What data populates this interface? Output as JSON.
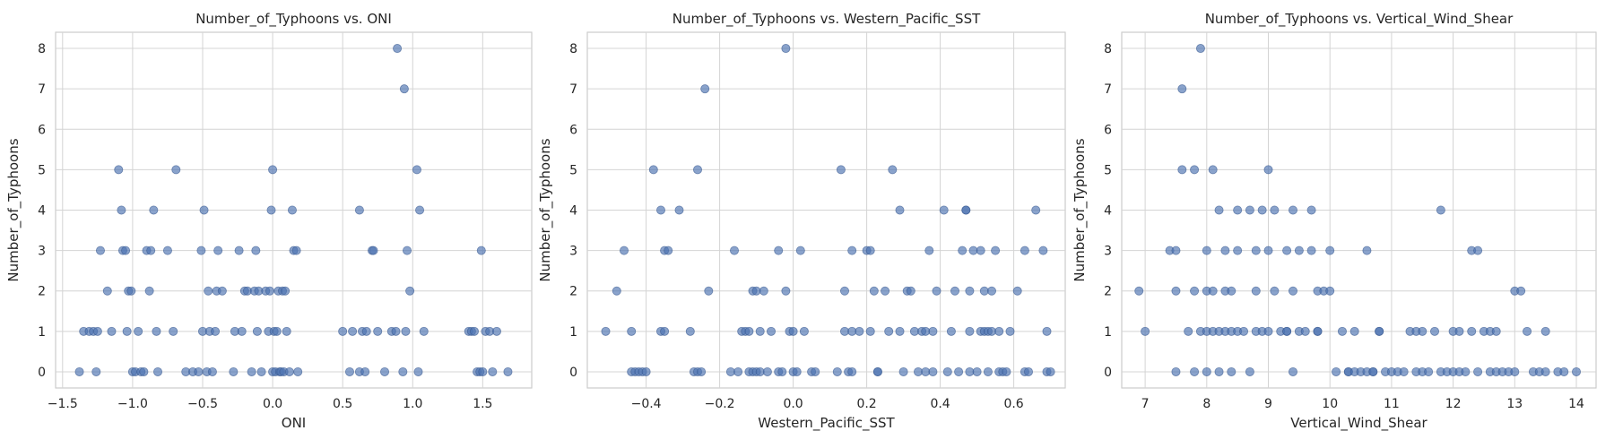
{
  "chart_data": [
    {
      "type": "scatter",
      "title": "Number_of_Typhoons vs. ONI",
      "xlabel": "ONI",
      "ylabel": "Number_of_Typhoons",
      "xlim": [
        -1.55,
        1.85
      ],
      "ylim": [
        -0.4,
        8.4
      ],
      "xticks": [
        -1.5,
        -1.0,
        -0.5,
        0.0,
        0.5,
        1.0,
        1.5
      ],
      "xtick_labels": [
        "−1.5",
        "−1.0",
        "−0.5",
        "0.0",
        "0.5",
        "1.0",
        "1.5"
      ],
      "yticks": [
        0,
        1,
        2,
        3,
        4,
        5,
        6,
        7,
        8
      ],
      "ytick_labels": [
        "0",
        "1",
        "2",
        "3",
        "4",
        "5",
        "6",
        "7",
        "8"
      ],
      "grid": true,
      "color": "#4c72b0",
      "points": [
        [
          -1.38,
          0
        ],
        [
          -1.35,
          1
        ],
        [
          -1.31,
          1
        ],
        [
          -1.28,
          1
        ],
        [
          -1.25,
          1
        ],
        [
          -1.26,
          0
        ],
        [
          -1.23,
          3
        ],
        [
          -1.18,
          2
        ],
        [
          -1.15,
          1
        ],
        [
          -1.1,
          5
        ],
        [
          -1.08,
          4
        ],
        [
          -1.07,
          3
        ],
        [
          -1.05,
          3
        ],
        [
          -1.04,
          1
        ],
        [
          -1.03,
          2
        ],
        [
          -1.01,
          2
        ],
        [
          -1.0,
          0
        ],
        [
          -0.98,
          0
        ],
        [
          -0.96,
          1
        ],
        [
          -0.94,
          0
        ],
        [
          -0.92,
          0
        ],
        [
          -0.9,
          3
        ],
        [
          -0.88,
          2
        ],
        [
          -0.87,
          3
        ],
        [
          -0.85,
          4
        ],
        [
          -0.83,
          1
        ],
        [
          -0.82,
          0
        ],
        [
          -0.75,
          3
        ],
        [
          -0.71,
          1
        ],
        [
          -0.69,
          5
        ],
        [
          -0.62,
          0
        ],
        [
          -0.57,
          0
        ],
        [
          -0.53,
          0
        ],
        [
          -0.51,
          3
        ],
        [
          -0.5,
          1
        ],
        [
          -0.49,
          4
        ],
        [
          -0.47,
          0
        ],
        [
          -0.46,
          2
        ],
        [
          -0.45,
          1
        ],
        [
          -0.43,
          0
        ],
        [
          -0.41,
          1
        ],
        [
          -0.4,
          2
        ],
        [
          -0.39,
          3
        ],
        [
          -0.36,
          2
        ],
        [
          -0.28,
          0
        ],
        [
          -0.27,
          1
        ],
        [
          -0.24,
          3
        ],
        [
          -0.22,
          1
        ],
        [
          -0.2,
          2
        ],
        [
          -0.18,
          2
        ],
        [
          -0.15,
          0
        ],
        [
          -0.13,
          2
        ],
        [
          -0.12,
          3
        ],
        [
          -0.11,
          1
        ],
        [
          -0.1,
          2
        ],
        [
          -0.08,
          0
        ],
        [
          -0.05,
          2
        ],
        [
          -0.03,
          1
        ],
        [
          -0.02,
          2
        ],
        [
          -0.01,
          4
        ],
        [
          0.0,
          5
        ],
        [
          0.0,
          0
        ],
        [
          0.01,
          1
        ],
        [
          0.02,
          0
        ],
        [
          0.03,
          1
        ],
        [
          0.04,
          2
        ],
        [
          0.05,
          0
        ],
        [
          0.06,
          0
        ],
        [
          0.07,
          2
        ],
        [
          0.08,
          0
        ],
        [
          0.09,
          2
        ],
        [
          0.1,
          1
        ],
        [
          0.12,
          0
        ],
        [
          0.14,
          4
        ],
        [
          0.15,
          3
        ],
        [
          0.17,
          3
        ],
        [
          0.18,
          0
        ],
        [
          0.5,
          1
        ],
        [
          0.55,
          0
        ],
        [
          0.57,
          1
        ],
        [
          0.62,
          4
        ],
        [
          0.62,
          0
        ],
        [
          0.64,
          1
        ],
        [
          0.66,
          0
        ],
        [
          0.67,
          1
        ],
        [
          0.71,
          3
        ],
        [
          0.72,
          3
        ],
        [
          0.75,
          1
        ],
        [
          0.8,
          0
        ],
        [
          0.85,
          1
        ],
        [
          0.88,
          1
        ],
        [
          0.89,
          8
        ],
        [
          0.93,
          0
        ],
        [
          0.94,
          7
        ],
        [
          0.95,
          1
        ],
        [
          0.96,
          3
        ],
        [
          0.98,
          2
        ],
        [
          1.03,
          5
        ],
        [
          1.04,
          0
        ],
        [
          1.05,
          4
        ],
        [
          1.08,
          1
        ],
        [
          1.4,
          1
        ],
        [
          1.42,
          1
        ],
        [
          1.44,
          1
        ],
        [
          1.46,
          0
        ],
        [
          1.48,
          0
        ],
        [
          1.49,
          3
        ],
        [
          1.5,
          0
        ],
        [
          1.52,
          1
        ],
        [
          1.55,
          1
        ],
        [
          1.57,
          0
        ],
        [
          1.6,
          1
        ],
        [
          1.68,
          0
        ]
      ]
    },
    {
      "type": "scatter",
      "title": "Number_of_Typhoons vs. Western_Pacific_SST",
      "xlabel": "Western_Pacific_SST",
      "ylabel": "Number_of_Typhoons",
      "xlim": [
        -0.56,
        0.74
      ],
      "ylim": [
        -0.4,
        8.4
      ],
      "xticks": [
        -0.4,
        -0.2,
        0.0,
        0.2,
        0.4,
        0.6
      ],
      "xtick_labels": [
        "−0.4",
        "−0.2",
        "0.0",
        "0.2",
        "0.4",
        "0.6"
      ],
      "yticks": [
        0,
        1,
        2,
        3,
        4,
        5,
        6,
        7,
        8
      ],
      "ytick_labels": [
        "0",
        "1",
        "2",
        "3",
        "4",
        "5",
        "6",
        "7",
        "8"
      ],
      "grid": true,
      "color": "#4c72b0",
      "points": [
        [
          -0.51,
          1
        ],
        [
          -0.48,
          2
        ],
        [
          -0.46,
          3
        ],
        [
          -0.44,
          1
        ],
        [
          -0.44,
          0
        ],
        [
          -0.43,
          0
        ],
        [
          -0.42,
          0
        ],
        [
          -0.41,
          0
        ],
        [
          -0.4,
          0
        ],
        [
          -0.38,
          5
        ],
        [
          -0.36,
          4
        ],
        [
          -0.36,
          1
        ],
        [
          -0.35,
          1
        ],
        [
          -0.35,
          3
        ],
        [
          -0.34,
          3
        ],
        [
          -0.31,
          4
        ],
        [
          -0.28,
          1
        ],
        [
          -0.27,
          0
        ],
        [
          -0.26,
          0
        ],
        [
          -0.26,
          5
        ],
        [
          -0.25,
          0
        ],
        [
          -0.24,
          7
        ],
        [
          -0.23,
          2
        ],
        [
          -0.17,
          0
        ],
        [
          -0.16,
          3
        ],
        [
          -0.15,
          0
        ],
        [
          -0.14,
          1
        ],
        [
          -0.13,
          1
        ],
        [
          -0.12,
          0
        ],
        [
          -0.12,
          1
        ],
        [
          -0.11,
          2
        ],
        [
          -0.11,
          0
        ],
        [
          -0.1,
          0
        ],
        [
          -0.1,
          2
        ],
        [
          -0.09,
          0
        ],
        [
          -0.09,
          1
        ],
        [
          -0.08,
          2
        ],
        [
          -0.07,
          0
        ],
        [
          -0.06,
          1
        ],
        [
          -0.04,
          3
        ],
        [
          -0.04,
          0
        ],
        [
          -0.03,
          0
        ],
        [
          -0.02,
          2
        ],
        [
          -0.02,
          8
        ],
        [
          -0.01,
          1
        ],
        [
          0.0,
          0
        ],
        [
          0.0,
          1
        ],
        [
          0.01,
          0
        ],
        [
          0.02,
          3
        ],
        [
          0.03,
          1
        ],
        [
          0.05,
          0
        ],
        [
          0.06,
          0
        ],
        [
          0.12,
          0
        ],
        [
          0.13,
          5
        ],
        [
          0.14,
          1
        ],
        [
          0.14,
          2
        ],
        [
          0.15,
          0
        ],
        [
          0.16,
          1
        ],
        [
          0.16,
          0
        ],
        [
          0.16,
          3
        ],
        [
          0.18,
          1
        ],
        [
          0.2,
          3
        ],
        [
          0.21,
          3
        ],
        [
          0.21,
          1
        ],
        [
          0.22,
          2
        ],
        [
          0.23,
          0
        ],
        [
          0.23,
          0
        ],
        [
          0.25,
          2
        ],
        [
          0.26,
          1
        ],
        [
          0.27,
          5
        ],
        [
          0.29,
          4
        ],
        [
          0.29,
          1
        ],
        [
          0.3,
          0
        ],
        [
          0.31,
          2
        ],
        [
          0.32,
          2
        ],
        [
          0.33,
          1
        ],
        [
          0.34,
          0
        ],
        [
          0.35,
          1
        ],
        [
          0.36,
          1
        ],
        [
          0.36,
          0
        ],
        [
          0.37,
          3
        ],
        [
          0.38,
          1
        ],
        [
          0.38,
          0
        ],
        [
          0.39,
          2
        ],
        [
          0.41,
          4
        ],
        [
          0.42,
          0
        ],
        [
          0.43,
          1
        ],
        [
          0.44,
          2
        ],
        [
          0.45,
          0
        ],
        [
          0.46,
          3
        ],
        [
          0.47,
          4
        ],
        [
          0.47,
          4
        ],
        [
          0.48,
          2
        ],
        [
          0.48,
          1
        ],
        [
          0.48,
          0
        ],
        [
          0.49,
          3
        ],
        [
          0.5,
          0
        ],
        [
          0.51,
          1
        ],
        [
          0.51,
          3
        ],
        [
          0.52,
          1
        ],
        [
          0.52,
          2
        ],
        [
          0.53,
          0
        ],
        [
          0.53,
          1
        ],
        [
          0.54,
          1
        ],
        [
          0.54,
          2
        ],
        [
          0.55,
          3
        ],
        [
          0.56,
          1
        ],
        [
          0.56,
          0
        ],
        [
          0.57,
          0
        ],
        [
          0.58,
          0
        ],
        [
          0.59,
          1
        ],
        [
          0.61,
          2
        ],
        [
          0.63,
          3
        ],
        [
          0.63,
          0
        ],
        [
          0.64,
          0
        ],
        [
          0.66,
          4
        ],
        [
          0.68,
          3
        ],
        [
          0.69,
          1
        ],
        [
          0.69,
          0
        ],
        [
          0.7,
          0
        ]
      ]
    },
    {
      "type": "scatter",
      "title": "Number_of_Typhoons vs. Vertical_Wind_Shear",
      "xlabel": "Vertical_Wind_Shear",
      "ylabel": "Number_of_Typhoons",
      "xlim": [
        6.62,
        14.32
      ],
      "ylim": [
        -0.4,
        8.4
      ],
      "xticks": [
        7,
        8,
        9,
        10,
        11,
        12,
        13,
        14
      ],
      "xtick_labels": [
        "7",
        "8",
        "9",
        "10",
        "11",
        "12",
        "13",
        "14"
      ],
      "yticks": [
        0,
        1,
        2,
        3,
        4,
        5,
        6,
        7,
        8
      ],
      "ytick_labels": [
        "0",
        "1",
        "2",
        "3",
        "4",
        "5",
        "6",
        "7",
        "8"
      ],
      "grid": true,
      "color": "#4c72b0",
      "points": [
        [
          6.9,
          2
        ],
        [
          7.0,
          1
        ],
        [
          7.4,
          3
        ],
        [
          7.5,
          3
        ],
        [
          7.5,
          2
        ],
        [
          7.5,
          0
        ],
        [
          7.6,
          7
        ],
        [
          7.6,
          5
        ],
        [
          7.7,
          1
        ],
        [
          7.8,
          5
        ],
        [
          7.8,
          2
        ],
        [
          7.8,
          0
        ],
        [
          7.9,
          8
        ],
        [
          7.9,
          1
        ],
        [
          8.0,
          3
        ],
        [
          8.0,
          2
        ],
        [
          8.0,
          1
        ],
        [
          8.0,
          0
        ],
        [
          8.1,
          5
        ],
        [
          8.1,
          2
        ],
        [
          8.1,
          1
        ],
        [
          8.2,
          4
        ],
        [
          8.2,
          1
        ],
        [
          8.2,
          0
        ],
        [
          8.3,
          3
        ],
        [
          8.3,
          2
        ],
        [
          8.3,
          1
        ],
        [
          8.4,
          2
        ],
        [
          8.4,
          1
        ],
        [
          8.4,
          0
        ],
        [
          8.5,
          4
        ],
        [
          8.5,
          3
        ],
        [
          8.5,
          1
        ],
        [
          8.6,
          1
        ],
        [
          8.7,
          4
        ],
        [
          8.7,
          0
        ],
        [
          8.8,
          3
        ],
        [
          8.8,
          2
        ],
        [
          8.8,
          1
        ],
        [
          8.9,
          4
        ],
        [
          8.9,
          1
        ],
        [
          9.0,
          5
        ],
        [
          9.0,
          3
        ],
        [
          9.0,
          1
        ],
        [
          9.1,
          4
        ],
        [
          9.1,
          2
        ],
        [
          9.2,
          1
        ],
        [
          9.3,
          3
        ],
        [
          9.3,
          1
        ],
        [
          9.3,
          1
        ],
        [
          9.4,
          4
        ],
        [
          9.4,
          2
        ],
        [
          9.4,
          0
        ],
        [
          9.5,
          3
        ],
        [
          9.5,
          1
        ],
        [
          9.6,
          1
        ],
        [
          9.7,
          4
        ],
        [
          9.7,
          3
        ],
        [
          9.8,
          2
        ],
        [
          9.8,
          1
        ],
        [
          9.8,
          1
        ],
        [
          9.9,
          2
        ],
        [
          10.0,
          3
        ],
        [
          10.0,
          2
        ],
        [
          10.1,
          0
        ],
        [
          10.2,
          1
        ],
        [
          10.3,
          0
        ],
        [
          10.3,
          0
        ],
        [
          10.4,
          1
        ],
        [
          10.4,
          0
        ],
        [
          10.5,
          0
        ],
        [
          10.6,
          3
        ],
        [
          10.6,
          0
        ],
        [
          10.7,
          0
        ],
        [
          10.7,
          0
        ],
        [
          10.8,
          1
        ],
        [
          10.8,
          1
        ],
        [
          10.9,
          0
        ],
        [
          11.0,
          0
        ],
        [
          11.1,
          0
        ],
        [
          11.2,
          0
        ],
        [
          11.3,
          1
        ],
        [
          11.4,
          1
        ],
        [
          11.4,
          0
        ],
        [
          11.5,
          1
        ],
        [
          11.5,
          0
        ],
        [
          11.6,
          0
        ],
        [
          11.7,
          1
        ],
        [
          11.8,
          4
        ],
        [
          11.8,
          0
        ],
        [
          11.9,
          0
        ],
        [
          12.0,
          1
        ],
        [
          12.0,
          0
        ],
        [
          12.1,
          1
        ],
        [
          12.1,
          0
        ],
        [
          12.2,
          0
        ],
        [
          12.3,
          3
        ],
        [
          12.3,
          1
        ],
        [
          12.4,
          3
        ],
        [
          12.4,
          0
        ],
        [
          12.5,
          1
        ],
        [
          12.6,
          1
        ],
        [
          12.6,
          0
        ],
        [
          12.7,
          1
        ],
        [
          12.7,
          0
        ],
        [
          12.8,
          0
        ],
        [
          12.9,
          0
        ],
        [
          13.0,
          2
        ],
        [
          13.0,
          0
        ],
        [
          13.1,
          2
        ],
        [
          13.2,
          1
        ],
        [
          13.3,
          0
        ],
        [
          13.4,
          0
        ],
        [
          13.5,
          1
        ],
        [
          13.5,
          0
        ],
        [
          13.7,
          0
        ],
        [
          13.8,
          0
        ],
        [
          14.0,
          0
        ]
      ]
    }
  ]
}
